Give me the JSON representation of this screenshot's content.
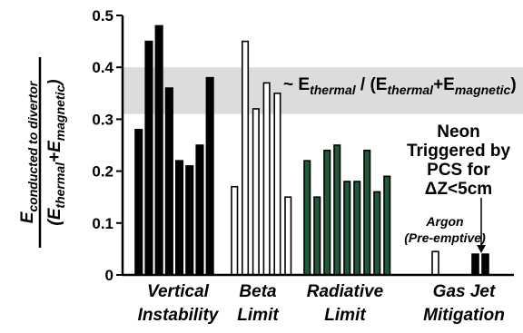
{
  "chart_data": {
    "type": "bar",
    "title": "",
    "ylabel": {
      "num_main": "E",
      "num_sub": "conducted to divertor",
      "den_open": "(E",
      "den_sub1": "thermal",
      "den_plus": "+E",
      "den_sub2": "magnetic",
      "den_close": ")"
    },
    "ylim": [
      0,
      0.5
    ],
    "yticks": [
      "0",
      "0.1",
      "0.2",
      "0.3",
      "0.4",
      "0.5"
    ],
    "band": {
      "y0": 0.31,
      "y1": 0.4,
      "color": "#dcdcdc"
    },
    "band_label": {
      "prefix": "~ E",
      "sub1": "thermal",
      "mid": " / (E",
      "sub2": "thermal",
      "plus": "+E",
      "sub3": "magnetic",
      "close": ")"
    },
    "groups": [
      {
        "name_lines": [
          "Vertical",
          "Instability"
        ],
        "style": "solid",
        "fill": "#000000",
        "values": [
          0.28,
          0.45,
          0.48,
          0.36,
          0.22,
          0.21,
          0.25,
          0.38
        ]
      },
      {
        "name_lines": [
          "Beta",
          "Limit"
        ],
        "style": "hollow",
        "fill": "#ffffff",
        "values": [
          0.17,
          0.45,
          0.32,
          0.37,
          0.35,
          0.15
        ]
      },
      {
        "name_lines": [
          "Radiative",
          "Limit"
        ],
        "style": "green",
        "fill": "#1f5a3a",
        "values": [
          0.22,
          0.15,
          0.24,
          0.25,
          0.18,
          0.18,
          0.24,
          0.16,
          0.19
        ]
      },
      {
        "name_lines": [
          "Gas Jet",
          "Mitigation"
        ],
        "style": "mixed",
        "fill": "#000000",
        "values": [
          0.045,
          0.04,
          0.04
        ],
        "hollow_index": [
          0
        ]
      }
    ],
    "annotations": {
      "neon_lines": [
        "Neon",
        "Triggered by",
        "PCS for",
        "ΔZ<5cm"
      ],
      "argon_lines": [
        "Argon",
        "(Pre-emptive)"
      ]
    }
  }
}
